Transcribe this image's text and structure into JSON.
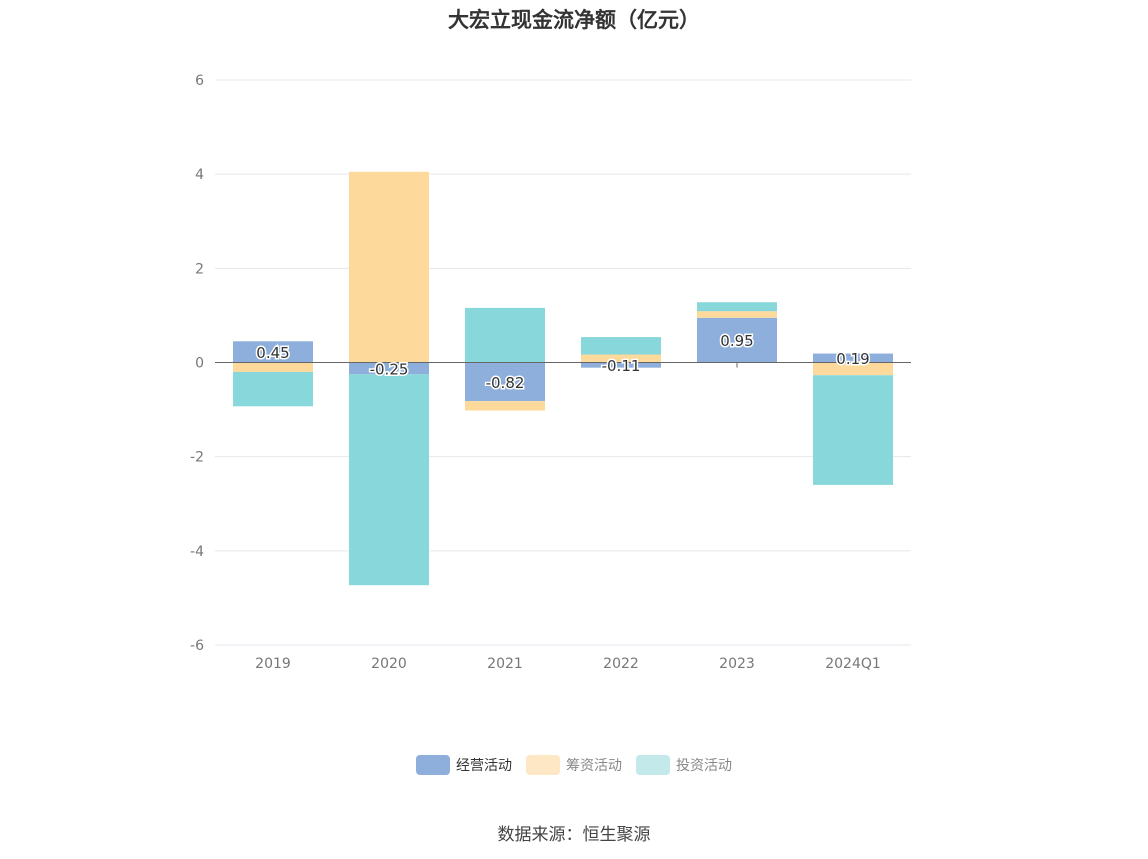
{
  "title": "大宏立现金流净额（亿元）",
  "source": "数据来源：恒生聚源",
  "colors": {
    "operating": "#8eaedb",
    "financing": "#fdd99b",
    "investing": "#88d7da",
    "grid": "#e4e7ee",
    "axis": "#666666",
    "tick_text": "#777777"
  },
  "legend": [
    {
      "label": "经营活动",
      "swatch": "#8eaedb",
      "active": true
    },
    {
      "label": "筹资活动",
      "swatch": "#fde7c4",
      "active": false
    },
    {
      "label": "投资活动",
      "swatch": "#c3e9ea",
      "active": false
    }
  ],
  "chart_data": {
    "type": "bar",
    "stacked": true,
    "title": "大宏立现金流净额（亿元）",
    "categories": [
      "2019",
      "2020",
      "2021",
      "2022",
      "2023",
      "2024Q1"
    ],
    "ylim": [
      -6,
      6
    ],
    "yticks": [
      6,
      4,
      2,
      0,
      -2,
      -4,
      -6
    ],
    "grid": true,
    "legend_position": "bottom",
    "series": [
      {
        "name": "经营活动",
        "values": [
          0.45,
          -0.25,
          -0.82,
          -0.11,
          0.95,
          0.19
        ],
        "show_labels": true
      },
      {
        "name": "筹资活动",
        "values": [
          -0.2,
          4.05,
          -0.2,
          0.17,
          0.14,
          -0.27
        ]
      },
      {
        "name": "投资活动",
        "values": [
          -0.73,
          -4.48,
          1.16,
          0.37,
          0.19,
          -2.33
        ]
      }
    ],
    "data_labels": [
      "0.45",
      "-0.25",
      "-0.82",
      "-0.11",
      "0.95",
      "0.19"
    ]
  }
}
